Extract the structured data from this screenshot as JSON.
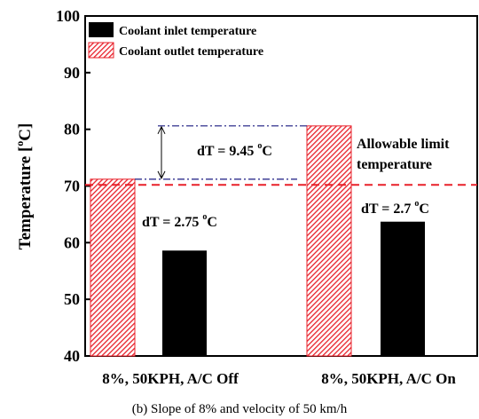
{
  "chart_data": {
    "type": "bar",
    "title": "",
    "caption": "(b) Slope of 8% and velocity of 50 km/h",
    "ylabel": "Temperature [",
    "ylabel_sup": "o",
    "ylabel_end": "C]",
    "ylim": [
      40,
      100
    ],
    "yticks": [
      40,
      50,
      60,
      70,
      80,
      90,
      100
    ],
    "categories": [
      "8%, 50KPH, A/C Off",
      "8%, 50KPH, A/C On"
    ],
    "series": [
      {
        "name": "Coolant inlet temperature",
        "values": [
          58.6,
          63.7
        ],
        "color": "#000000"
      },
      {
        "name": "Coolant outlet temperature",
        "values": [
          71.2,
          80.6
        ],
        "color": "#e8202a",
        "pattern": "hatch"
      }
    ],
    "legend": {
      "placement": "top-left"
    },
    "annotations": {
      "off_dt": {
        "text": "dT = 2.75 ",
        "sup": "o",
        "unit": "C"
      },
      "gap_dt": {
        "text": "dT = 9.45 ",
        "sup": "o",
        "unit": "C"
      },
      "on_dt": {
        "text": "dT = 2.7 ",
        "sup": "o",
        "unit": "C"
      },
      "limit_line1": "Allowable limit",
      "limit_line2": "temperature",
      "limit_value": 70.2
    },
    "colors": {
      "limit_line": "#e8202a",
      "ref_lines": "#1a1a80"
    }
  }
}
